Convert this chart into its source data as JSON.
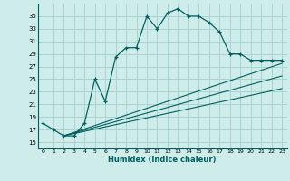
{
  "xlabel": "Humidex (Indice chaleur)",
  "ylabel": "",
  "bg_color": "#ceecea",
  "grid_color": "#aad4d0",
  "line_color": "#006060",
  "xlim": [
    -0.5,
    23.5
  ],
  "ylim": [
    14.0,
    37.0
  ],
  "yticks": [
    15,
    17,
    19,
    21,
    23,
    25,
    27,
    29,
    31,
    33,
    35
  ],
  "xticks": [
    0,
    1,
    2,
    3,
    4,
    5,
    6,
    7,
    8,
    9,
    10,
    11,
    12,
    13,
    14,
    15,
    16,
    17,
    18,
    19,
    20,
    21,
    22,
    23
  ],
  "curve1_x": [
    0,
    1,
    2,
    3,
    4,
    5,
    6,
    7,
    8,
    9,
    10,
    11,
    12,
    13,
    14,
    15,
    16,
    17,
    18,
    19,
    20,
    21,
    22,
    23
  ],
  "curve1_y": [
    18,
    17,
    16,
    16,
    18,
    25,
    21.5,
    28.5,
    30,
    30,
    35,
    33,
    35.5,
    36.2,
    35,
    35,
    34,
    32.5,
    29,
    29,
    28,
    28,
    28,
    28
  ],
  "line1_x": [
    2,
    23
  ],
  "line1_y": [
    16,
    27.5
  ],
  "line2_x": [
    2,
    23
  ],
  "line2_y": [
    16,
    25.5
  ],
  "line3_x": [
    2,
    23
  ],
  "line3_y": [
    16,
    23.5
  ]
}
